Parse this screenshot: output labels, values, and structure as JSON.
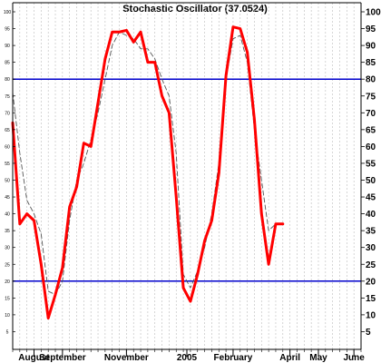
{
  "chart_data": {
    "type": "line",
    "title": "Stochastic Oscillator (37.0524)",
    "xlabel": "",
    "ylabel": "",
    "ylim": [
      0,
      100
    ],
    "yticks": [
      5,
      10,
      15,
      20,
      25,
      30,
      35,
      40,
      45,
      50,
      55,
      60,
      65,
      70,
      75,
      80,
      85,
      90,
      95,
      100
    ],
    "x_tick_labels": [
      {
        "label": "August",
        "x": 3
      },
      {
        "label": "September",
        "x": 7
      },
      {
        "label": "November",
        "x": 16
      },
      {
        "label": "2005",
        "x": 24.5
      },
      {
        "label": "February",
        "x": 31
      },
      {
        "label": "April",
        "x": 39
      },
      {
        "label": "May",
        "x": 43
      },
      {
        "label": "June",
        "x": 48
      }
    ],
    "reference_lines": [
      {
        "y": 80,
        "color": "#0000cc"
      },
      {
        "y": 20,
        "color": "#0000cc"
      }
    ],
    "grid": {
      "vertical": true,
      "horizontal": false
    },
    "series": [
      {
        "style": "solid",
        "color": "#ff0000",
        "x": [
          0,
          1,
          2,
          3,
          4,
          5,
          6,
          7,
          8,
          9,
          10,
          11,
          12,
          13,
          14,
          15,
          16,
          17,
          18,
          19,
          20,
          21,
          22,
          23,
          24,
          25,
          26,
          27,
          28,
          29,
          30,
          31,
          32,
          33,
          34,
          35,
          36,
          37,
          38
        ],
        "values": [
          67,
          37,
          40,
          38,
          25,
          9,
          16,
          24,
          42,
          48,
          61,
          60,
          73,
          86,
          94,
          94,
          94.5,
          91,
          94,
          85,
          85,
          75,
          70,
          45,
          18,
          14,
          22,
          32,
          38,
          52,
          81,
          95.5,
          95,
          88,
          68,
          40,
          25,
          37,
          37
        ]
      },
      {
        "style": "dashed",
        "color": "#555555",
        "x": [
          0,
          1,
          2,
          3,
          4,
          5,
          6,
          7,
          8,
          9,
          10,
          11,
          12,
          13,
          14,
          15,
          16,
          17,
          18,
          19,
          20,
          21,
          22,
          23,
          24,
          25,
          26,
          27,
          28,
          29,
          30,
          31,
          32,
          33,
          34,
          35,
          36,
          37
        ],
        "values": [
          76,
          58,
          44,
          40,
          34,
          17,
          16,
          20,
          38,
          50,
          55,
          62,
          70,
          80,
          90,
          94,
          93,
          92,
          89,
          89,
          86,
          80,
          75,
          58,
          22,
          18,
          23,
          30,
          40,
          55,
          80,
          92,
          93,
          85,
          65,
          50,
          35,
          37
        ]
      }
    ]
  }
}
